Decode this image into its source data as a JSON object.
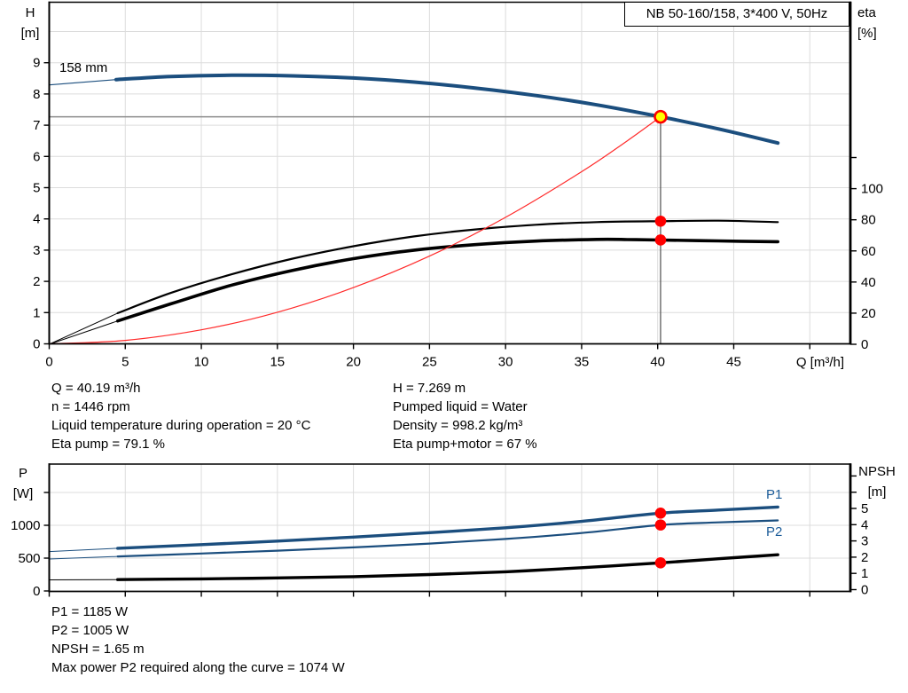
{
  "header": {
    "title": "NB 50-160/158, 3*400 V, 50Hz"
  },
  "top_chart": {
    "y_left_label": "H",
    "y_left_unit": "[m]",
    "y_right_label": "eta",
    "y_right_unit": "[%]",
    "x_label": "Q [m³/h]",
    "impeller_label": "158 mm"
  },
  "bottom_chart": {
    "y_left_label": "P",
    "y_left_unit": "[W]",
    "y_right_label": "NPSH",
    "y_right_unit": "[m]",
    "p1_label": "P1",
    "p2_label": "P2"
  },
  "operating_info": {
    "left": [
      "Q = 40.19 m³/h",
      "n = 1446 rpm",
      "Liquid temperature during operation = 20 °C",
      "Eta pump = 79.1 %"
    ],
    "right": [
      "H = 7.269 m",
      "Pumped liquid = Water",
      "Density = 998.2 kg/m³",
      "Eta pump+motor = 67 %"
    ]
  },
  "result_info": [
    "P1 = 1185 W",
    "P2 = 1005 W",
    "NPSH = 1.65 m",
    "Max power P2 required along the curve = 1074 W"
  ],
  "colors": {
    "curve_blue": "#1B4E7E",
    "label_blue": "#1C5C99",
    "marker_red": "#FF0000",
    "duty_yellow": "#FFFF00",
    "grid": "#DCDCDC",
    "duty_h_line": "#8C8C8C",
    "duty_v_line": "#4D4D4D"
  },
  "duty_point": {
    "Q": 40.19,
    "H": 7.269,
    "eta_pump": 79.1,
    "eta_pump_motor": 67,
    "P1": 1185,
    "P2": 1005,
    "NPSH": 1.65
  },
  "chart_data": [
    {
      "id": "head-capacity",
      "type": "line",
      "title": "NB 50-160/158, 3*400 V, 50Hz",
      "xlabel": "Q [m³/h]",
      "x_range": [
        0,
        52.7
      ],
      "x_grid": [
        5,
        10,
        15,
        20,
        25,
        30,
        35,
        40,
        45,
        50
      ],
      "x_ticks": [
        {
          "q": 0,
          "label": "0"
        },
        {
          "q": 5,
          "label": "5"
        },
        {
          "q": 10,
          "label": "10"
        },
        {
          "q": 15,
          "label": "15"
        },
        {
          "q": 20,
          "label": "20"
        },
        {
          "q": 25,
          "label": "25"
        },
        {
          "q": 30,
          "label": "30"
        },
        {
          "q": 35,
          "label": "35"
        },
        {
          "q": 40,
          "label": "40"
        },
        {
          "q": 45,
          "label": "45"
        },
        {
          "q": 50,
          "label": ""
        }
      ],
      "axes": {
        "H": {
          "side": "left",
          "label": "H [m]",
          "range": [
            0,
            10.94
          ],
          "grid": [
            1,
            2,
            3,
            4,
            5,
            6,
            7,
            8,
            9,
            10
          ],
          "ticks": [
            {
              "v": 0,
              "label": "0"
            },
            {
              "v": 1,
              "label": "1"
            },
            {
              "v": 2,
              "label": "2"
            },
            {
              "v": 3,
              "label": "3"
            },
            {
              "v": 4,
              "label": "4"
            },
            {
              "v": 5,
              "label": "5"
            },
            {
              "v": 6,
              "label": "6"
            },
            {
              "v": 7,
              "label": "7"
            },
            {
              "v": 8,
              "label": "8"
            },
            {
              "v": 9,
              "label": "9"
            }
          ]
        },
        "eta": {
          "side": "right",
          "label": "eta [%]",
          "range": [
            0,
            220
          ],
          "ticks": [
            {
              "v": 0,
              "label": "0"
            },
            {
              "v": 20,
              "label": "20"
            },
            {
              "v": 40,
              "label": "40"
            },
            {
              "v": 60,
              "label": "60"
            },
            {
              "v": 80,
              "label": "80"
            },
            {
              "v": 100,
              "label": "100"
            },
            {
              "v": 120,
              "label": ""
            }
          ]
        }
      },
      "duty_lines": {
        "h_level": 7.269,
        "q": 40.19
      },
      "series": [
        {
          "name": "eta-pump-curve-ext",
          "axis": "eta",
          "color": "#000000",
          "width": 1,
          "points": [
            [
              0,
              0
            ],
            [
              4.5,
              20
            ]
          ]
        },
        {
          "name": "eta-pump-motor-curve-ext",
          "axis": "eta",
          "color": "#000000",
          "width": 1,
          "points": [
            [
              0,
              0
            ],
            [
              4.5,
              15
            ]
          ]
        },
        {
          "name": "eta-pump-curve",
          "axis": "eta",
          "color": "#000000",
          "width": 2.2,
          "smooth": true,
          "points": [
            [
              4.5,
              20
            ],
            [
              8,
              33
            ],
            [
              12,
              45
            ],
            [
              16,
              55
            ],
            [
              20,
              63
            ],
            [
              24,
              69.3
            ],
            [
              28,
              73.8
            ],
            [
              32,
              76.8
            ],
            [
              36,
              78.5
            ],
            [
              40.19,
              79.1
            ],
            [
              44,
              79.4
            ],
            [
              47.9,
              78.5
            ]
          ]
        },
        {
          "name": "eta-pump-motor-curve",
          "axis": "eta",
          "color": "#000000",
          "width": 3.6,
          "smooth": true,
          "points": [
            [
              4.5,
              15
            ],
            [
              8,
              26
            ],
            [
              12,
              38
            ],
            [
              16,
              47.5
            ],
            [
              20,
              55
            ],
            [
              24,
              60.5
            ],
            [
              28,
              64
            ],
            [
              32,
              66.3
            ],
            [
              36,
              67.4
            ],
            [
              38,
              67.3
            ],
            [
              40.19,
              67
            ],
            [
              44,
              66.4
            ],
            [
              47.9,
              65.9
            ]
          ]
        },
        {
          "name": "affinity-parabola",
          "axis": "H",
          "color": "#FF2A2A",
          "width": 1.2,
          "smooth": true,
          "points": [
            [
              0,
              0
            ],
            [
              5,
              0.11
            ],
            [
              10,
              0.45
            ],
            [
              15,
              1.01
            ],
            [
              20,
              1.8
            ],
            [
              25,
              2.81
            ],
            [
              30,
              4.05
            ],
            [
              35,
              5.51
            ],
            [
              38,
              6.5
            ],
            [
              40.19,
              7.269
            ]
          ]
        },
        {
          "name": "pump-curve-ext",
          "axis": "H",
          "color": "#1B4E7E",
          "width": 1.2,
          "points": [
            [
              0,
              8.29
            ],
            [
              4.4,
              8.46
            ]
          ]
        },
        {
          "name": "pump-curve",
          "axis": "H",
          "color": "#1B4E7E",
          "width": 4,
          "smooth": true,
          "points": [
            [
              4.4,
              8.46
            ],
            [
              8,
              8.56
            ],
            [
              12,
              8.6
            ],
            [
              16,
              8.58
            ],
            [
              20,
              8.51
            ],
            [
              24,
              8.38
            ],
            [
              28,
              8.19
            ],
            [
              32,
              7.95
            ],
            [
              36,
              7.65
            ],
            [
              40.19,
              7.269
            ],
            [
              44,
              6.88
            ],
            [
              47.9,
              6.43
            ]
          ]
        }
      ],
      "markers": [
        {
          "name": "eta-pump-point",
          "q": 40.19,
          "axis": "eta",
          "v": 79.1,
          "kind": "dot"
        },
        {
          "name": "eta-pump-motor-point",
          "q": 40.19,
          "axis": "eta",
          "v": 67,
          "kind": "dot"
        },
        {
          "name": "duty-point",
          "q": 40.19,
          "axis": "H",
          "v": 7.269,
          "kind": "duty"
        }
      ]
    },
    {
      "id": "power-npsh",
      "type": "line",
      "xlabel": "Q [m³/h]",
      "x_range": [
        0,
        52.7
      ],
      "x_grid": [
        5,
        10,
        15,
        20,
        25,
        30,
        35,
        40,
        45,
        50
      ],
      "x_ticks": [
        {
          "q": 0,
          "label": ""
        },
        {
          "q": 5,
          "label": ""
        },
        {
          "q": 10,
          "label": ""
        },
        {
          "q": 15,
          "label": ""
        },
        {
          "q": 20,
          "label": ""
        },
        {
          "q": 25,
          "label": ""
        },
        {
          "q": 30,
          "label": ""
        },
        {
          "q": 35,
          "label": ""
        },
        {
          "q": 40,
          "label": ""
        },
        {
          "q": 45,
          "label": ""
        },
        {
          "q": 50,
          "label": ""
        }
      ],
      "axes": {
        "P": {
          "side": "left",
          "label": "P [W]",
          "range": [
            0,
            1932
          ],
          "grid": [
            500,
            1000,
            1500
          ],
          "ticks": [
            {
              "v": 0,
              "label": "0"
            },
            {
              "v": 500,
              "label": "500"
            },
            {
              "v": 1000,
              "label": "1000"
            },
            {
              "v": 1500,
              "label": ""
            }
          ]
        },
        "NPSH": {
          "side": "right",
          "label": "NPSH [m]",
          "range": [
            0,
            7.7
          ],
          "ticks": [
            {
              "v": 0,
              "label": "0"
            },
            {
              "v": 1,
              "label": "1"
            },
            {
              "v": 2,
              "label": "2"
            },
            {
              "v": 3,
              "label": "3"
            },
            {
              "v": 4,
              "label": "4"
            },
            {
              "v": 5,
              "label": "5"
            },
            {
              "v": 6,
              "label": ""
            },
            {
              "v": 7,
              "label": ""
            }
          ]
        }
      },
      "series": [
        {
          "name": "p1-curve-ext",
          "axis": "P",
          "color": "#1B4E7E",
          "width": 1,
          "points": [
            [
              0,
              600
            ],
            [
              4.5,
              650
            ]
          ]
        },
        {
          "name": "p2-curve-ext",
          "axis": "P",
          "color": "#1B4E7E",
          "width": 1,
          "points": [
            [
              0,
              487
            ],
            [
              4.5,
              525
            ]
          ]
        },
        {
          "name": "npsh-curve-ext",
          "axis": "NPSH",
          "color": "#000000",
          "width": 1,
          "points": [
            [
              0,
              0.6
            ],
            [
              4.5,
              0.62
            ]
          ]
        },
        {
          "name": "p1-curve",
          "axis": "P",
          "color": "#1B4E7E",
          "width": 3.4,
          "smooth": true,
          "points": [
            [
              4.5,
              650
            ],
            [
              10,
              706
            ],
            [
              15,
              760
            ],
            [
              20,
              820
            ],
            [
              25,
              888
            ],
            [
              30,
              962
            ],
            [
              35,
              1060
            ],
            [
              40.19,
              1185
            ],
            [
              44,
              1232
            ],
            [
              47.9,
              1278
            ]
          ]
        },
        {
          "name": "p2-curve",
          "axis": "P",
          "color": "#1B4E7E",
          "width": 2.2,
          "smooth": true,
          "points": [
            [
              4.5,
              525
            ],
            [
              10,
              570
            ],
            [
              15,
              614
            ],
            [
              20,
              664
            ],
            [
              25,
              722
            ],
            [
              30,
              792
            ],
            [
              35,
              882
            ],
            [
              40.19,
              1005
            ],
            [
              44,
              1044
            ],
            [
              47.9,
              1074
            ]
          ]
        },
        {
          "name": "npsh-curve",
          "axis": "NPSH",
          "color": "#000000",
          "width": 3.4,
          "smooth": true,
          "points": [
            [
              4.5,
              0.62
            ],
            [
              10,
              0.66
            ],
            [
              15,
              0.72
            ],
            [
              20,
              0.8
            ],
            [
              25,
              0.93
            ],
            [
              30,
              1.1
            ],
            [
              35,
              1.35
            ],
            [
              40.19,
              1.65
            ],
            [
              44,
              1.9
            ],
            [
              47.9,
              2.15
            ]
          ]
        }
      ],
      "markers": [
        {
          "name": "p1-point",
          "q": 40.19,
          "axis": "P",
          "v": 1185,
          "kind": "dot"
        },
        {
          "name": "p2-point",
          "q": 40.19,
          "axis": "P",
          "v": 1005,
          "kind": "dot"
        },
        {
          "name": "npsh-point",
          "q": 40.19,
          "axis": "NPSH",
          "v": 1.65,
          "kind": "dot"
        }
      ]
    }
  ]
}
